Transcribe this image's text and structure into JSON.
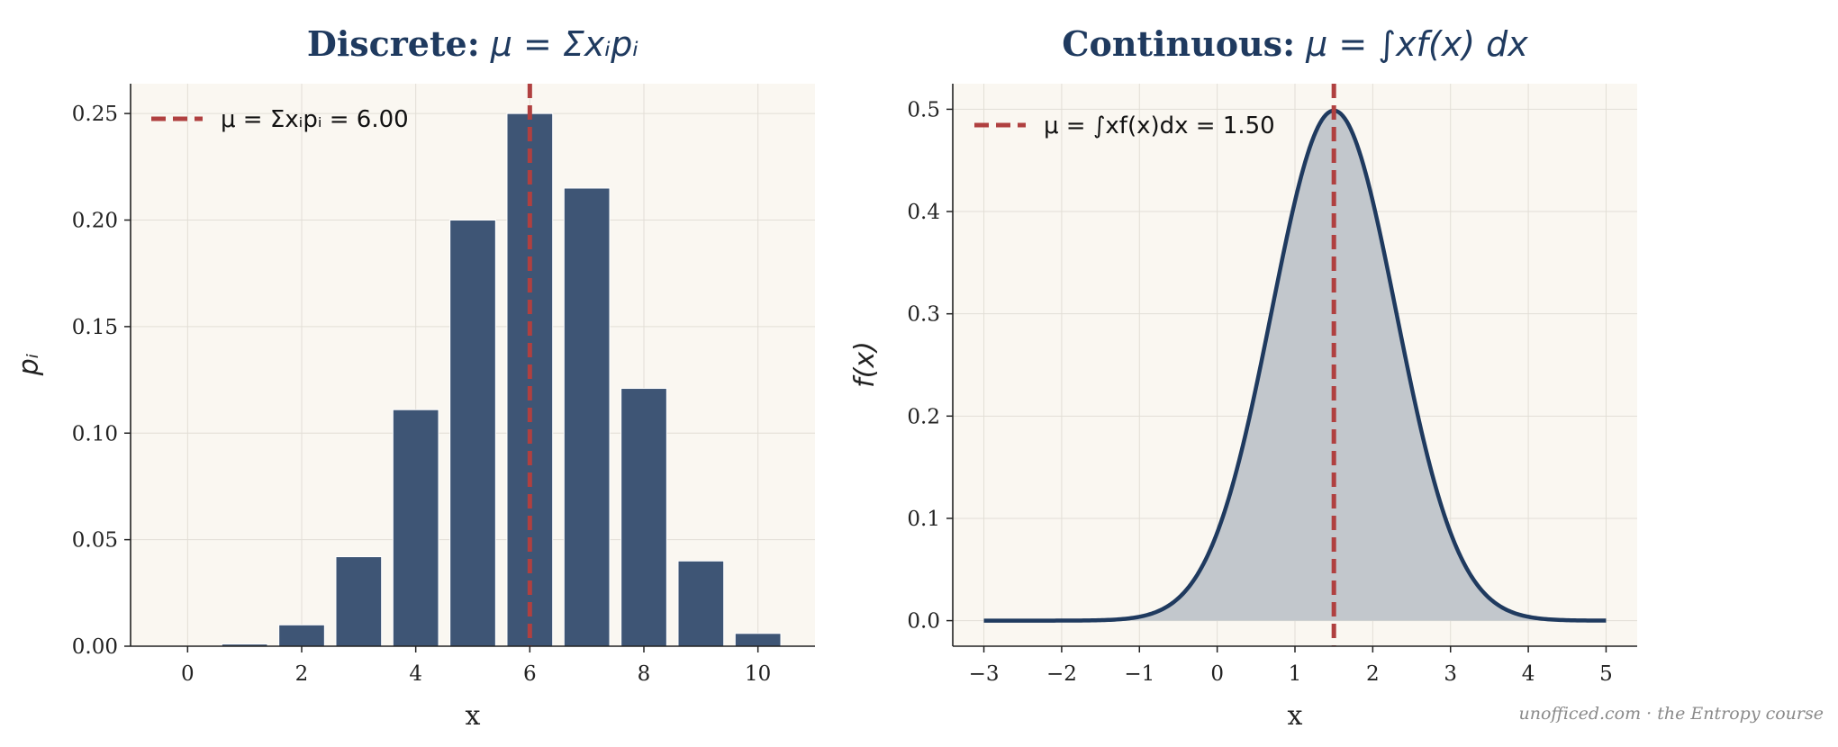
{
  "chart_data": [
    {
      "type": "bar",
      "title_bold": "Discrete:",
      "title_math": "μ = Σxᵢpᵢ",
      "xlabel": "x",
      "ylabel": "pᵢ",
      "x": [
        0,
        1,
        2,
        3,
        4,
        5,
        6,
        7,
        8,
        9,
        10
      ],
      "values": [
        0.0,
        0.001,
        0.01,
        0.042,
        0.111,
        0.2,
        0.25,
        0.215,
        0.121,
        0.04,
        0.006
      ],
      "xlim": [
        -1,
        11
      ],
      "ylim": [
        0,
        0.264
      ],
      "xticks": [
        0,
        2,
        4,
        6,
        8,
        10
      ],
      "xtick_labels": [
        "0",
        "2",
        "4",
        "6",
        "8",
        "10"
      ],
      "yticks": [
        0.0,
        0.05,
        0.1,
        0.15,
        0.2,
        0.25
      ],
      "ytick_labels": [
        "0.00",
        "0.05",
        "0.10",
        "0.15",
        "0.20",
        "0.25"
      ],
      "mean": 6.0,
      "legend": "μ = Σxᵢpᵢ = 6.00",
      "legend_position": "top-left",
      "grid": true,
      "colors": {
        "bar": "#3e5575",
        "mean_line": "#b04040",
        "plot_bg": "#faf7f1"
      }
    },
    {
      "type": "line",
      "title_bold": "Continuous:",
      "title_math": "μ = ∫xf(x) dx",
      "xlabel": "x",
      "ylabel": "f(x)",
      "distribution": {
        "shape": "normal",
        "mean": 1.5,
        "sd": 0.8
      },
      "x_range": [
        -3,
        5
      ],
      "xlim": [
        -3.4,
        5.4
      ],
      "ylim": [
        -0.025,
        0.525
      ],
      "xticks": [
        -3,
        -2,
        -1,
        0,
        1,
        2,
        3,
        4,
        5
      ],
      "xtick_labels": [
        "−3",
        "−2",
        "−1",
        "0",
        "1",
        "2",
        "3",
        "4",
        "5"
      ],
      "yticks": [
        0.0,
        0.1,
        0.2,
        0.3,
        0.4,
        0.5
      ],
      "ytick_labels": [
        "0.0",
        "0.1",
        "0.2",
        "0.3",
        "0.4",
        "0.5"
      ],
      "mean": 1.5,
      "legend": "μ = ∫xf(x)dx = 1.50",
      "legend_position": "top-left",
      "grid": true,
      "filled": true,
      "colors": {
        "line": "#1f3a5f",
        "fill": "#c2c7cc",
        "mean_line": "#b04040",
        "plot_bg": "#faf7f1"
      }
    }
  ],
  "footer": "unofficed.com  ·  the Entropy course"
}
